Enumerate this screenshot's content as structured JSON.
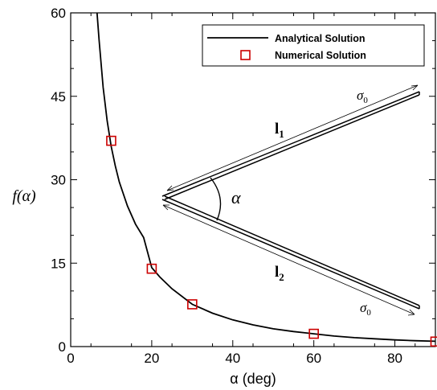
{
  "chart_data": {
    "type": "line",
    "xlabel": "α (deg)",
    "ylabel": "f(α)",
    "xlim": [
      0,
      90
    ],
    "ylim": [
      0,
      60
    ],
    "xticks": [
      0,
      20,
      40,
      60,
      80
    ],
    "yticks": [
      0,
      15,
      30,
      45,
      60
    ],
    "series": [
      {
        "name": "Analytical Solution",
        "kind": "line",
        "color": "#000000",
        "x": [
          6.5,
          7,
          8,
          9,
          10,
          11,
          12,
          14,
          16,
          18,
          20,
          22,
          25,
          30,
          35,
          40,
          45,
          50,
          55,
          60,
          65,
          70,
          75,
          80,
          85,
          90
        ],
        "y": [
          60.0,
          55.2,
          46.6,
          40.6,
          36.0,
          32.5,
          29.6,
          25.3,
          22.0,
          19.6,
          14.2,
          12.5,
          10.4,
          7.6,
          6.0,
          4.8,
          3.9,
          3.2,
          2.7,
          2.3,
          1.9,
          1.6,
          1.4,
          1.2,
          1.05,
          0.95
        ]
      },
      {
        "name": "Numerical Solution",
        "kind": "marker",
        "color": "#cc0000",
        "x": [
          10,
          20,
          30,
          60,
          90
        ],
        "y": [
          37.0,
          14.0,
          7.6,
          2.3,
          0.9
        ]
      }
    ],
    "legend": {
      "position": "top-right",
      "entries": [
        "Analytical Solution",
        "Numerical Solution"
      ]
    },
    "inset": {
      "angle_label": "α",
      "upper_length_label": "l",
      "upper_length_sub": "1",
      "lower_length_label": "l",
      "lower_length_sub": "2",
      "sigma_label": "σ",
      "sigma_sub": "0"
    }
  }
}
